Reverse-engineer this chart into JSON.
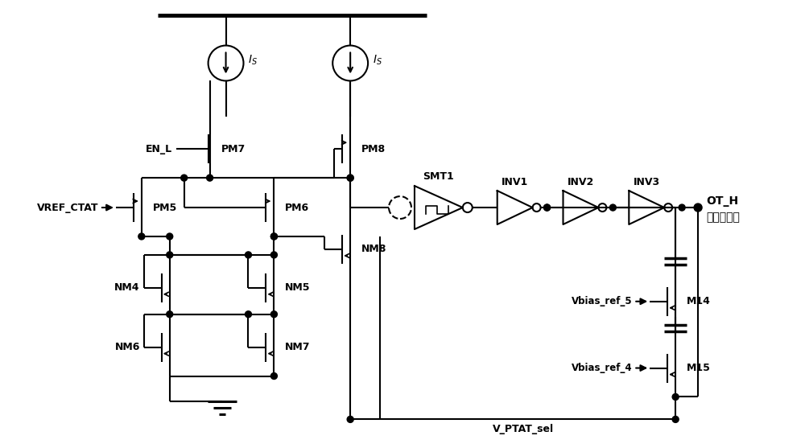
{
  "bg_color": "#ffffff",
  "line_color": "#000000",
  "lw": 1.5,
  "fig_width": 10.0,
  "fig_height": 5.57,
  "labels": {
    "IS": "I_S",
    "EN_L": "EN_L",
    "PM7": "PM7",
    "PM8": "PM8",
    "PM5": "PM5",
    "PM6": "PM6",
    "NM4": "NM4",
    "NM5": "NM5",
    "NM6": "NM6",
    "NM7": "NM7",
    "NM8": "NM8",
    "SMT1": "SMT1",
    "INV1": "INV1",
    "INV2": "INV2",
    "INV3": "INV3",
    "M14": "M14",
    "M15": "M15",
    "VREF_CTAT": "VREF_CTAT",
    "Vbias_ref_5": "Vbias_ref_5",
    "Vbias_ref_4": "Vbias_ref_4",
    "OT_H": "OT_H",
    "OT_H_zh": "过温时为高",
    "V_PTAT_sel": "V_PTAT_sel"
  }
}
